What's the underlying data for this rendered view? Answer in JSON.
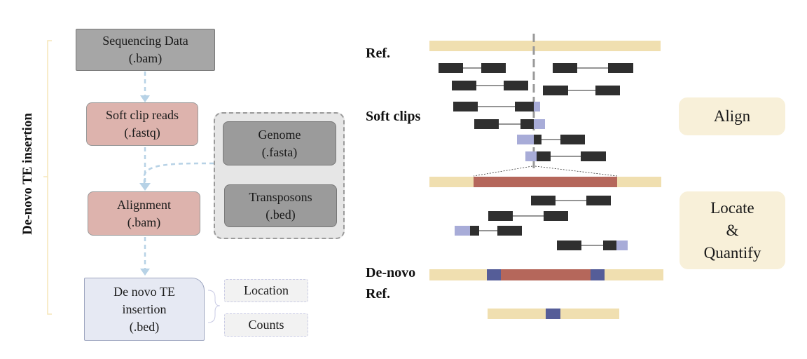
{
  "workflow": {
    "title": "De-novo TE insertion",
    "sequencing": {
      "line1": "Sequencing Data",
      "line2": "(.bam)"
    },
    "softclip": {
      "line1": "Soft clip reads",
      "line2": "(.fastq)"
    },
    "alignment": {
      "line1": "Alignment",
      "line2": "(.bam)"
    },
    "genome": {
      "line1": "Genome",
      "line2": "(.fasta)"
    },
    "transposons": {
      "line1": "Transposons",
      "line2": "(.bed)"
    },
    "output": {
      "line1": "De novo TE",
      "line2": "insertion",
      "line3": "(.bed)"
    },
    "location": "Location",
    "counts": "Counts"
  },
  "schematic": {
    "ref_label": "Ref.",
    "softclips_label": "Soft clips",
    "denovo_label_line1": "De-novo",
    "denovo_label_line2": "Ref.",
    "stage_align": "Align",
    "stage_locate_line1": "Locate",
    "stage_locate_line2": "&",
    "stage_locate_line3": "Quantify"
  },
  "colors": {
    "reference_track": "#f0dfb0",
    "te_insert": "#b5675b",
    "junction": "#555d98",
    "read_segment": "#2f2f2f",
    "soft_clip": "#a8acd8",
    "arrow": "#b7d2e6"
  }
}
